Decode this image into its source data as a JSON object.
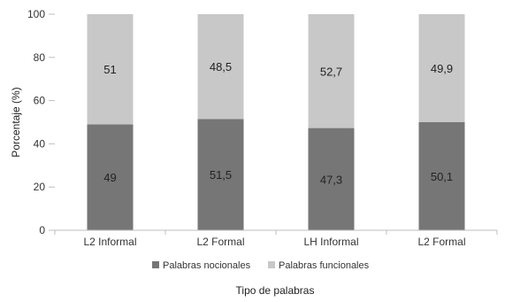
{
  "chart_data": {
    "type": "bar",
    "stacked": true,
    "categories": [
      "L2 Informal",
      "L2 Formal",
      "LH Informal",
      "L2 Formal"
    ],
    "series": [
      {
        "name": "Palabras nocionales",
        "color": "#767676",
        "values": [
          49,
          51.5,
          47.3,
          50.1
        ],
        "labels": [
          "49",
          "51,5",
          "47,3",
          "50,1"
        ]
      },
      {
        "name": "Palabras funcionales",
        "color": "#c8c8c8",
        "values": [
          51,
          48.5,
          52.7,
          49.9
        ],
        "labels": [
          "51",
          "48,5",
          "52,7",
          "49,9"
        ]
      }
    ],
    "xlabel": "Tipo de palabras",
    "ylabel": "Porcentaje (%)",
    "ylim": [
      0,
      100
    ],
    "yticks": [
      0,
      20,
      40,
      60,
      80,
      100
    ],
    "grid": false,
    "legend_position": "bottom"
  }
}
